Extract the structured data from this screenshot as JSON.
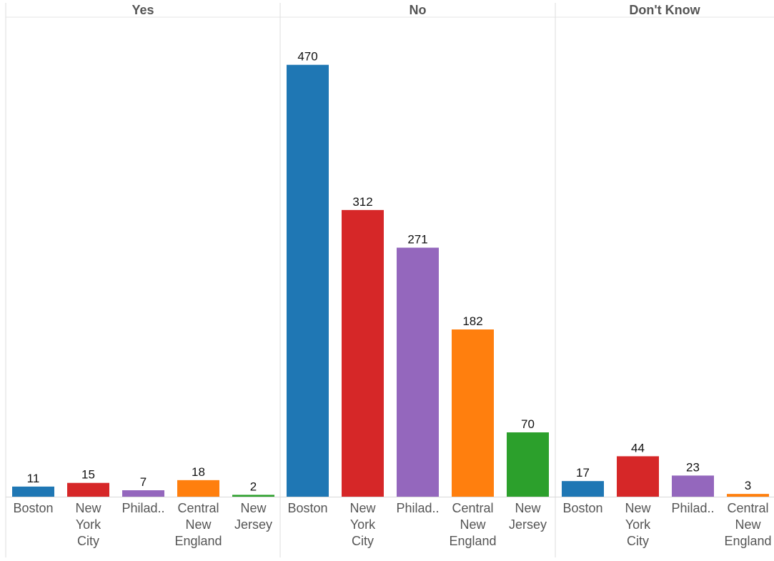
{
  "chart_data": {
    "type": "bar",
    "grid": false,
    "legend": "none",
    "ylim": [
      0,
      490
    ],
    "panels": [
      {
        "name": "Yes",
        "bars": [
          {
            "category": "Boston",
            "label_lines": [
              "Boston"
            ],
            "value": 11,
            "color": "#1f77b4"
          },
          {
            "category": "New York City",
            "label_lines": [
              "New",
              "York",
              "City"
            ],
            "value": 15,
            "color": "#d62728"
          },
          {
            "category": "Philad..",
            "label_lines": [
              "Philad.."
            ],
            "value": 7,
            "color": "#9467bd"
          },
          {
            "category": "Central New England",
            "label_lines": [
              "Central",
              "New",
              "England"
            ],
            "value": 18,
            "color": "#ff7f0e"
          },
          {
            "category": "New Jersey",
            "label_lines": [
              "New",
              "Jersey"
            ],
            "value": 2,
            "color": "#2ca02c"
          }
        ]
      },
      {
        "name": "No",
        "bars": [
          {
            "category": "Boston",
            "label_lines": [
              "Boston"
            ],
            "value": 470,
            "color": "#1f77b4"
          },
          {
            "category": "New York City",
            "label_lines": [
              "New",
              "York",
              "City"
            ],
            "value": 312,
            "color": "#d62728"
          },
          {
            "category": "Philad..",
            "label_lines": [
              "Philad.."
            ],
            "value": 271,
            "color": "#9467bd"
          },
          {
            "category": "Central New England",
            "label_lines": [
              "Central",
              "New",
              "England"
            ],
            "value": 182,
            "color": "#ff7f0e"
          },
          {
            "category": "New Jersey",
            "label_lines": [
              "New",
              "Jersey"
            ],
            "value": 70,
            "color": "#2ca02c"
          }
        ]
      },
      {
        "name": "Don't Know",
        "bars": [
          {
            "category": "Boston",
            "label_lines": [
              "Boston"
            ],
            "value": 17,
            "color": "#1f77b4"
          },
          {
            "category": "New York City",
            "label_lines": [
              "New",
              "York",
              "City"
            ],
            "value": 44,
            "color": "#d62728"
          },
          {
            "category": "Philad..",
            "label_lines": [
              "Philad.."
            ],
            "value": 23,
            "color": "#9467bd"
          },
          {
            "category": "Central New England",
            "label_lines": [
              "Central",
              "New",
              "England"
            ],
            "value": 3,
            "color": "#ff7f0e"
          }
        ]
      }
    ]
  }
}
